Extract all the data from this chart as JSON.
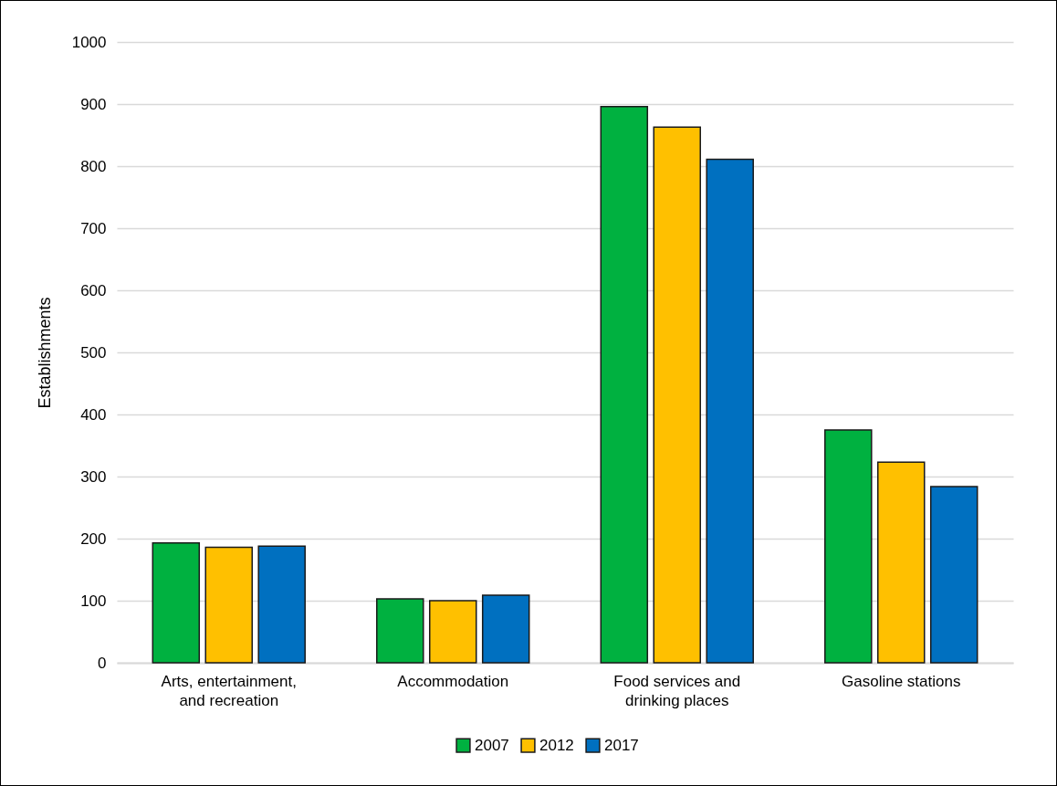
{
  "chart_data": {
    "type": "bar",
    "ylabel": "Establishments",
    "categories": [
      "Arts, entertainment, and recreation",
      "Accommodation",
      "Food services and drinking places",
      "Gasoline stations"
    ],
    "series": [
      {
        "name": "2007",
        "color": "#00b140",
        "values": [
          193,
          103,
          896,
          375
        ]
      },
      {
        "name": "2012",
        "color": "#ffc000",
        "values": [
          186,
          100,
          863,
          323
        ]
      },
      {
        "name": "2017",
        "color": "#0070c0",
        "values": [
          188,
          109,
          811,
          284
        ]
      }
    ],
    "ylim": [
      0,
      1000
    ],
    "yticks": [
      0,
      100,
      200,
      300,
      400,
      500,
      600,
      700,
      800,
      900,
      1000
    ],
    "grid": "y",
    "legend": "bottom"
  }
}
